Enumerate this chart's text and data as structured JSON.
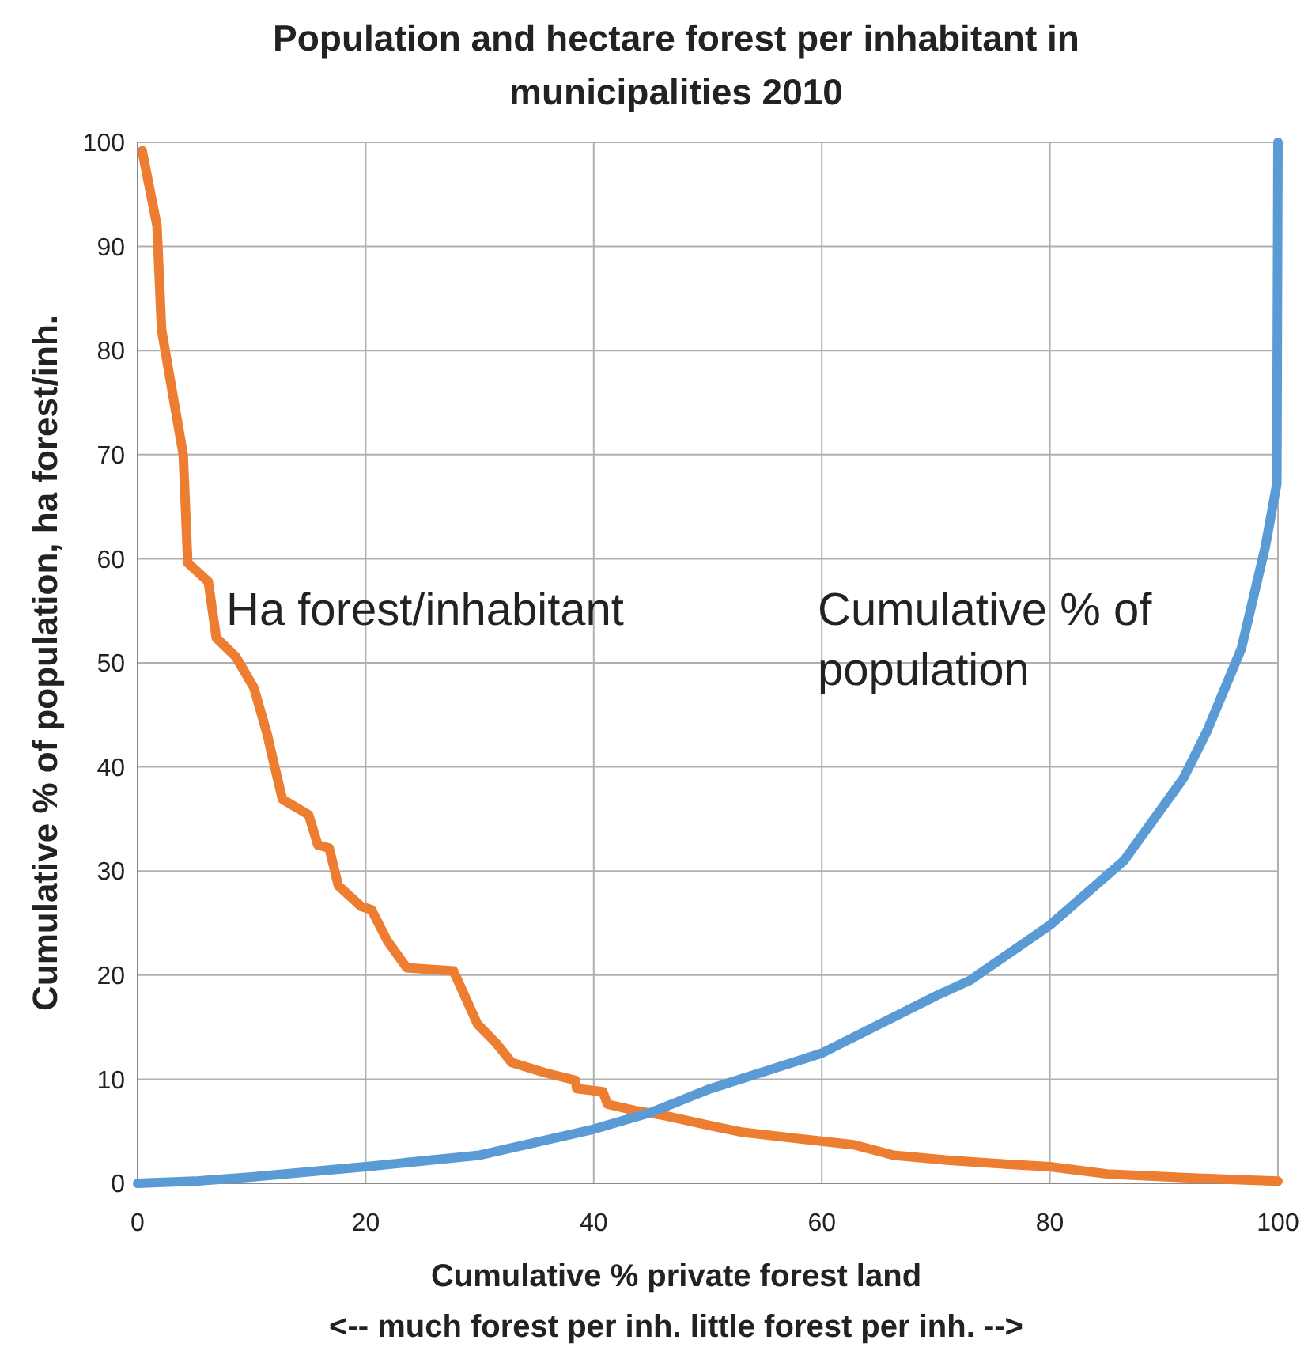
{
  "chart_data": {
    "type": "line",
    "title": "Population and hectare forest per inhabitant in municipalities 2010",
    "xlabel": "Cumulative %  private forest land\n<-- much forest per inh.  little forest per inh. -->",
    "ylabel": "Cumulative % of population, ha forest/inh.",
    "xlim": [
      0,
      100
    ],
    "ylim": [
      0,
      100
    ],
    "xticks": [
      0,
      20,
      40,
      60,
      80,
      100
    ],
    "yticks": [
      0,
      10,
      20,
      30,
      40,
      50,
      60,
      70,
      80,
      90,
      100
    ],
    "grid": true,
    "legend": false,
    "marker": "none",
    "line_style": "solid",
    "series": [
      {
        "name": "Ha forest/inhabitant",
        "color": "#ed7d31",
        "x": [
          0.4,
          1.7,
          2.1,
          4,
          4.4,
          6.2,
          6.9,
          8.6,
          10.2,
          11.4,
          11.7,
          12.7,
          15,
          15.8,
          16.8,
          17.6,
          19.6,
          20.5,
          21.9,
          23.6,
          27.7,
          29.8,
          31.5,
          32.8,
          35.8,
          38.4,
          38.5,
          40.8,
          41.2,
          43.6,
          46.2,
          50.4,
          53.1,
          58.7,
          62.8,
          66.3,
          71.2,
          76.7,
          80,
          85,
          90.6,
          97.5,
          100
        ],
        "values": [
          99.2,
          92,
          82,
          70,
          59.6,
          57.8,
          52.4,
          50.6,
          47.6,
          43,
          41.5,
          36.9,
          35.4,
          32.5,
          32.2,
          28.6,
          26.6,
          26.3,
          23.3,
          20.7,
          20.4,
          15.3,
          13.4,
          11.6,
          10.6,
          9.9,
          9.1,
          8.8,
          7.6,
          7,
          6.5,
          5.5,
          4.9,
          4.2,
          3.7,
          2.7,
          2.2,
          1.8,
          1.6,
          0.9,
          0.6,
          0.3,
          0.2
        ]
      },
      {
        "name": "Cumulative % of population",
        "color": "#5b9bd5",
        "x": [
          0,
          5,
          10,
          20,
          30,
          40,
          45,
          50,
          60,
          70,
          73,
          80,
          86.5,
          91.7,
          93.8,
          96.8,
          98.9,
          99.9,
          100
        ],
        "values": [
          0,
          0.2,
          0.6,
          1.6,
          2.7,
          5.2,
          6.8,
          9,
          12.5,
          18,
          19.5,
          24.8,
          31,
          38.9,
          43.5,
          51.4,
          61.2,
          67.2,
          100
        ]
      }
    ]
  }
}
